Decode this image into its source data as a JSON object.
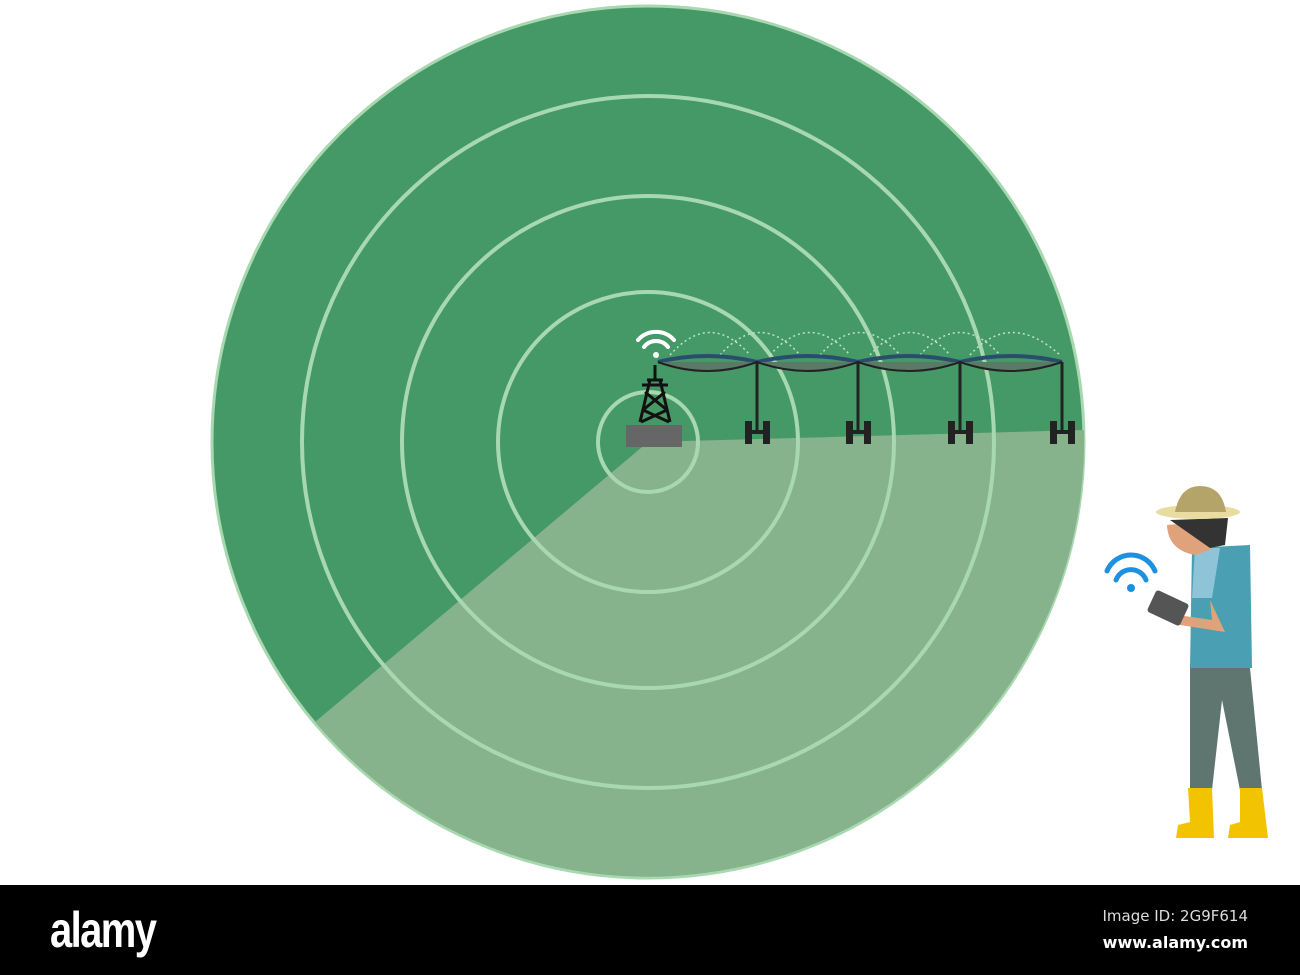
{
  "illustration": {
    "colors": {
      "field_dark": "#449966",
      "field_light": "#86b38c",
      "ring": "#a8d8b0",
      "wifi_farmer": "#1e90e0",
      "wifi_tower": "#ffffff"
    },
    "icons": [
      "radio-tower-icon",
      "wifi-icon",
      "center-pivot-irrigation",
      "farmer-with-tablet"
    ]
  },
  "footer": {
    "logo": "alamy",
    "image_id": "Image ID: 2G9F614",
    "url": "www.alamy.com"
  }
}
